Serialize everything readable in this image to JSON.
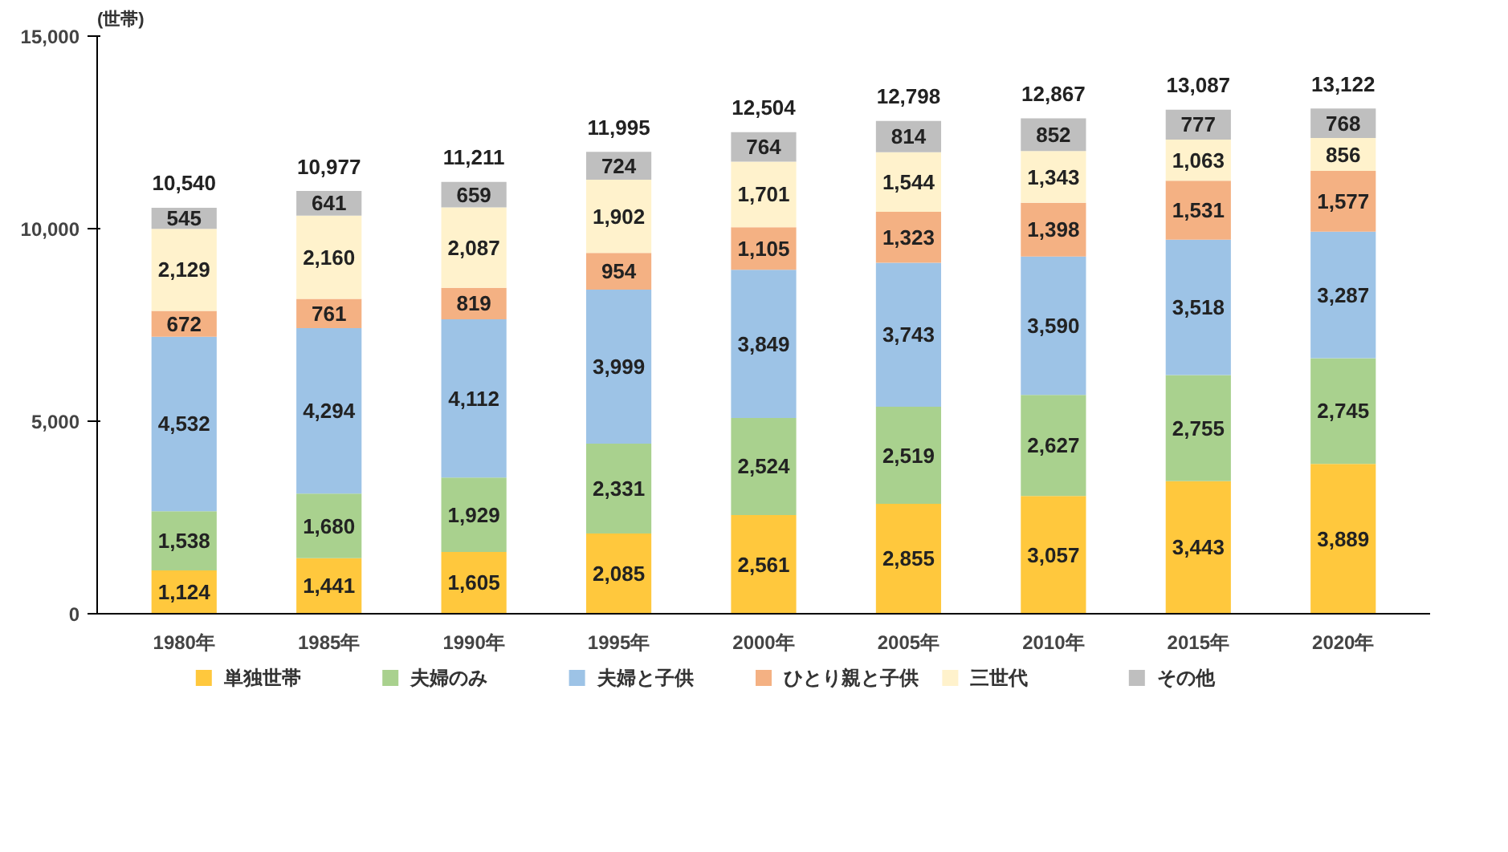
{
  "chart_data": {
    "type": "bar",
    "stacked": true,
    "ylabel": "(世帯)",
    "categories": [
      "1980年",
      "1985年",
      "1990年",
      "1995年",
      "2000年",
      "2005年",
      "2010年",
      "2015年",
      "2020年"
    ],
    "ylim": [
      0,
      15000
    ],
    "yticks": [
      {
        "value": 0,
        "label": "0"
      },
      {
        "value": 5000,
        "label": "5,000"
      },
      {
        "value": 10000,
        "label": "10,000"
      },
      {
        "value": 15000,
        "label": "15,000"
      }
    ],
    "grid": false,
    "legend": "bottom",
    "series": [
      {
        "name": "単独世帯",
        "color": "#ffc83d",
        "values": [
          1124,
          1441,
          1605,
          2085,
          2561,
          2855,
          3057,
          3443,
          3889
        ],
        "value_labels": [
          "1,124",
          "1,441",
          "1,605",
          "2,085",
          "2,561",
          "2,855",
          "3,057",
          "3,443",
          "3,889"
        ]
      },
      {
        "name": "夫婦のみ",
        "color": "#a9d18e",
        "values": [
          1538,
          1680,
          1929,
          2331,
          2524,
          2519,
          2627,
          2755,
          2745
        ],
        "value_labels": [
          "1,538",
          "1,680",
          "1,929",
          "2,331",
          "2,524",
          "2,519",
          "2,627",
          "2,755",
          "2,745"
        ]
      },
      {
        "name": "夫婦と子供",
        "color": "#9dc3e6",
        "values": [
          4532,
          4294,
          4112,
          3999,
          3849,
          3743,
          3590,
          3518,
          3287
        ],
        "value_labels": [
          "4,532",
          "4,294",
          "4,112",
          "3,999",
          "3,849",
          "3,743",
          "3,590",
          "3,518",
          "3,287"
        ]
      },
      {
        "name": "ひとり親と子供",
        "color": "#f4b183",
        "values": [
          672,
          761,
          819,
          954,
          1105,
          1323,
          1398,
          1531,
          1577
        ],
        "value_labels": [
          "672",
          "761",
          "819",
          "954",
          "1,105",
          "1,323",
          "1,398",
          "1,531",
          "1,577"
        ]
      },
      {
        "name": "三世代",
        "color": "#fff2cc",
        "values": [
          2129,
          2160,
          2087,
          1902,
          1701,
          1544,
          1343,
          1063,
          856
        ],
        "value_labels": [
          "2,129",
          "2,160",
          "2,087",
          "1,902",
          "1,701",
          "1,544",
          "1,343",
          "1,063",
          "856"
        ]
      },
      {
        "name": "その他",
        "color": "#bfbfbf",
        "values": [
          545,
          641,
          659,
          724,
          764,
          814,
          852,
          777,
          768
        ],
        "value_labels": [
          "545",
          "641",
          "659",
          "724",
          "764",
          "814",
          "852",
          "777",
          "768"
        ]
      }
    ],
    "totals": [
      "10,540",
      "10,977",
      "11,211",
      "11,995",
      "12,504",
      "12,798",
      "12,867",
      "13,087",
      "13,122"
    ]
  }
}
